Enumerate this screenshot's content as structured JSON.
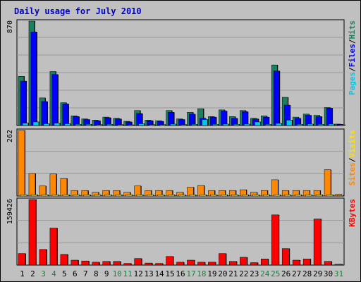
{
  "title": "Daily usage for July 2010",
  "colors": {
    "background": "#c0c0c0",
    "plot_bg": "#c0c0c0",
    "grid": "#9a9a9a",
    "title": "#0000c8",
    "hits": "#1a8060",
    "files": "#0000ff",
    "pages": "#00c8e8",
    "sites": "#ff8800",
    "visits": "#ffe000",
    "kbytes": "#ff0000",
    "weekend_label": "#1a8040",
    "weekday_label": "#000000"
  },
  "chart_data": [
    {
      "type": "bar",
      "panel": "hits-files-pages",
      "ylabel_max": "870",
      "ylim": [
        0,
        870
      ],
      "legend": [
        "Pages",
        "/",
        "Files",
        "/",
        "Hits"
      ],
      "categories": [
        "1",
        "2",
        "3",
        "4",
        "5",
        "6",
        "7",
        "8",
        "9",
        "10",
        "11",
        "12",
        "13",
        "14",
        "15",
        "16",
        "17",
        "18",
        "19",
        "20",
        "21",
        "22",
        "23",
        "24",
        "25",
        "26",
        "27",
        "28",
        "29",
        "30",
        "31"
      ],
      "weekend_days": [
        "3",
        "4",
        "10",
        "11",
        "17",
        "18",
        "24",
        "25",
        "31"
      ],
      "series": [
        {
          "name": "Hits",
          "values": [
            410,
            870,
            230,
            450,
            190,
            80,
            55,
            45,
            70,
            60,
            35,
            125,
            45,
            40,
            125,
            55,
            110,
            140,
            75,
            130,
            75,
            125,
            60,
            80,
            505,
            235,
            70,
            95,
            85,
            150,
            12
          ]
        },
        {
          "name": "Files",
          "values": [
            370,
            780,
            200,
            425,
            180,
            75,
            50,
            40,
            65,
            55,
            30,
            100,
            40,
            35,
            110,
            50,
            95,
            60,
            70,
            120,
            60,
            115,
            55,
            70,
            455,
            170,
            60,
            85,
            75,
            145,
            10
          ]
        },
        {
          "name": "Pages",
          "values": [
            20,
            30,
            15,
            20,
            15,
            10,
            10,
            8,
            10,
            8,
            5,
            15,
            8,
            8,
            12,
            8,
            10,
            50,
            10,
            12,
            10,
            12,
            30,
            10,
            18,
            45,
            10,
            12,
            10,
            12,
            3
          ]
        }
      ]
    },
    {
      "type": "bar",
      "panel": "sites-visits",
      "ylabel_max": "262",
      "ylim": [
        0,
        262
      ],
      "legend": [
        "Sites",
        "/",
        "Visits"
      ],
      "categories": [
        "1",
        "2",
        "3",
        "4",
        "5",
        "6",
        "7",
        "8",
        "9",
        "10",
        "11",
        "12",
        "13",
        "14",
        "15",
        "16",
        "17",
        "18",
        "19",
        "20",
        "21",
        "22",
        "23",
        "24",
        "25",
        "26",
        "27",
        "28",
        "29",
        "30",
        "31"
      ],
      "series": [
        {
          "name": "Visits",
          "values": [
            262,
            90,
            40,
            88,
            70,
            22,
            22,
            15,
            22,
            22,
            15,
            40,
            22,
            22,
            22,
            15,
            35,
            42,
            22,
            22,
            22,
            25,
            15,
            22,
            65,
            22,
            22,
            22,
            22,
            105,
            6
          ]
        },
        {
          "name": "Sites",
          "values": [
            5,
            5,
            5,
            5,
            5,
            5,
            5,
            5,
            5,
            5,
            5,
            5,
            5,
            5,
            5,
            5,
            5,
            5,
            5,
            5,
            5,
            5,
            5,
            5,
            5,
            5,
            5,
            5,
            5,
            5,
            2
          ]
        }
      ]
    },
    {
      "type": "bar",
      "panel": "kbytes",
      "ylabel_max": "159426",
      "ylim": [
        0,
        159426
      ],
      "legend": [
        "KBytes"
      ],
      "categories": [
        "1",
        "2",
        "3",
        "4",
        "5",
        "6",
        "7",
        "8",
        "9",
        "10",
        "11",
        "12",
        "13",
        "14",
        "15",
        "16",
        "17",
        "18",
        "19",
        "20",
        "21",
        "22",
        "23",
        "24",
        "25",
        "26",
        "27",
        "28",
        "29",
        "30",
        "31"
      ],
      "series": [
        {
          "name": "KBytes",
          "values": [
            28000,
            159426,
            38000,
            90000,
            26000,
            12000,
            10000,
            7000,
            9000,
            9000,
            4000,
            16000,
            5000,
            4000,
            21000,
            7000,
            12000,
            7000,
            7000,
            28000,
            9000,
            19000,
            6000,
            15000,
            122000,
            40000,
            12000,
            15000,
            112000,
            9000,
            2000
          ]
        }
      ]
    }
  ]
}
